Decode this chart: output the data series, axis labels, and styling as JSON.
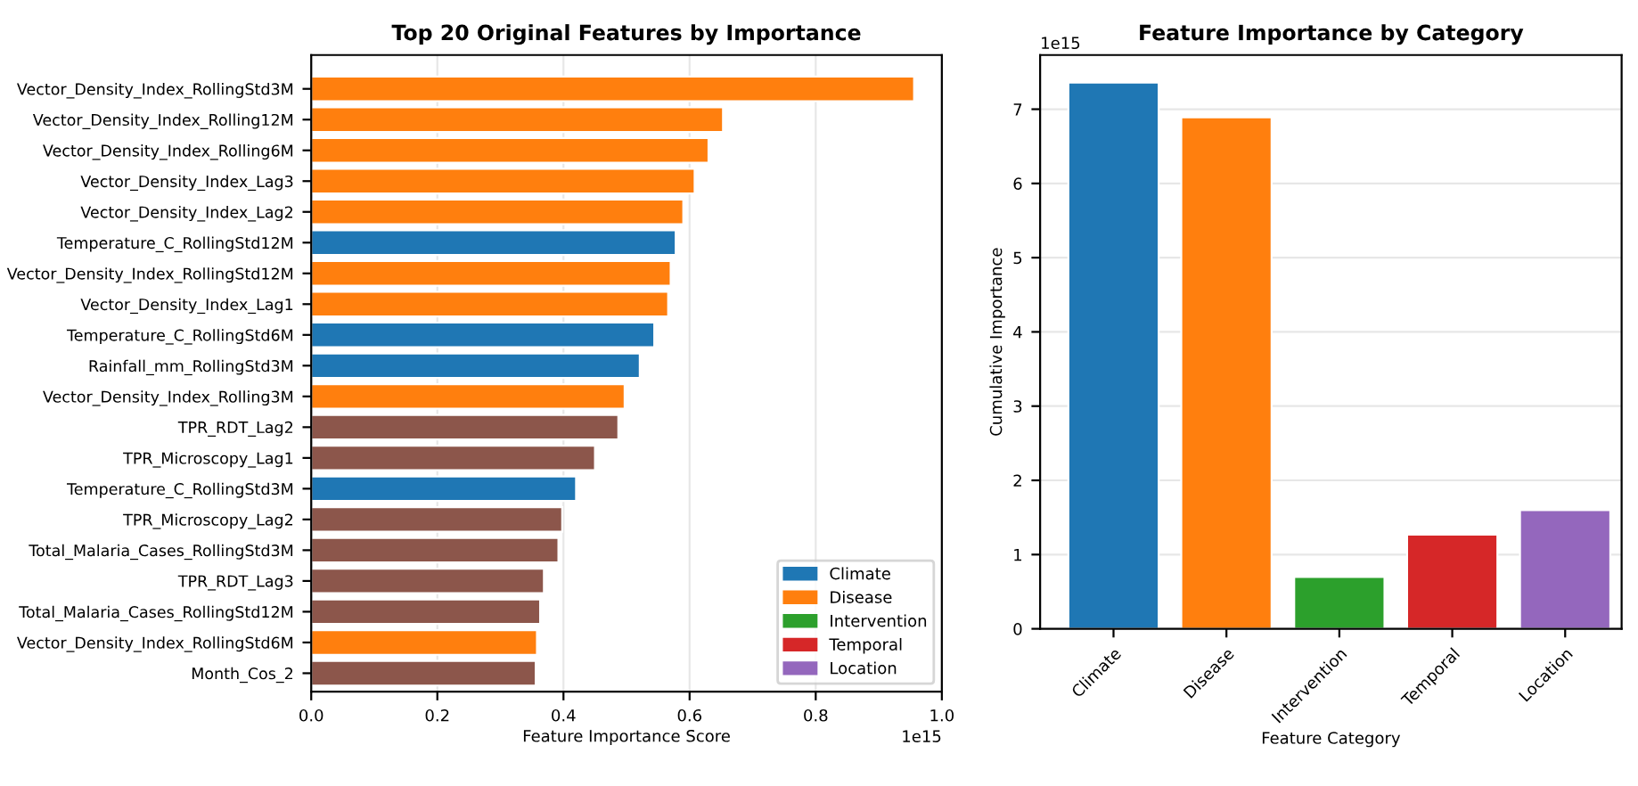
{
  "chart_data": [
    {
      "type": "bar",
      "orientation": "horizontal",
      "title": "Top 20 Original Features by Importance",
      "xlabel": "Feature Importance Score",
      "categories": [
        "Vector_Density_Index_RollingStd3M",
        "Vector_Density_Index_Rolling12M",
        "Vector_Density_Index_Rolling6M",
        "Vector_Density_Index_Lag3",
        "Vector_Density_Index_Lag2",
        "Temperature_C_RollingStd12M",
        "Vector_Density_Index_RollingStd12M",
        "Vector_Density_Index_Lag1",
        "Temperature_C_RollingStd6M",
        "Rainfall_mm_RollingStd3M",
        "Vector_Density_Index_Rolling3M",
        "TPR_RDT_Lag2",
        "TPR_Microscopy_Lag1",
        "Temperature_C_RollingStd3M",
        "TPR_Microscopy_Lag2",
        "Total_Malaria_Cases_RollingStd3M",
        "TPR_RDT_Lag3",
        "Total_Malaria_Cases_RollingStd12M",
        "Vector_Density_Index_RollingStd6M",
        "Month_Cos_2"
      ],
      "series": [
        {
          "name": "Climate",
          "color": "#1f77b4",
          "values": [
            null,
            null,
            null,
            null,
            null,
            0.578,
            null,
            null,
            0.544,
            0.521,
            null,
            null,
            null,
            0.42,
            null,
            null,
            null,
            null,
            null,
            null
          ]
        },
        {
          "name": "Disease",
          "color": "#ff7f0e",
          "values": [
            0.956,
            0.653,
            0.63,
            0.608,
            0.59,
            null,
            0.57,
            0.566,
            null,
            null,
            0.497,
            null,
            null,
            null,
            null,
            null,
            null,
            null,
            0.358,
            null
          ]
        },
        {
          "name": "Intervention",
          "color": "#2ca02c",
          "values": [
            null,
            null,
            null,
            null,
            null,
            null,
            null,
            null,
            null,
            null,
            null,
            null,
            null,
            null,
            null,
            null,
            null,
            null,
            null,
            null
          ]
        },
        {
          "name": "Temporal",
          "color": "#d62728",
          "values": [
            null,
            null,
            null,
            null,
            null,
            null,
            null,
            null,
            null,
            null,
            null,
            null,
            null,
            null,
            null,
            null,
            null,
            null,
            null,
            null
          ]
        },
        {
          "name": "Location",
          "color": "#9467bd",
          "values": [
            null,
            null,
            null,
            null,
            null,
            null,
            null,
            null,
            null,
            null,
            null,
            null,
            null,
            null,
            null,
            null,
            null,
            null,
            null,
            null
          ]
        },
        {
          "color": "#8c564b",
          "values": [
            null,
            null,
            null,
            null,
            null,
            null,
            null,
            null,
            null,
            null,
            null,
            0.487,
            0.45,
            null,
            0.398,
            0.392,
            0.369,
            0.363,
            null,
            0.356
          ]
        }
      ],
      "xlim": [
        0,
        1.0
      ],
      "xticks": [
        {
          "value": 0,
          "label": "0.0"
        },
        0.2,
        0.4,
        0.6,
        0.8,
        {
          "value": 1,
          "label": "1.0"
        }
      ],
      "annotations": [
        "1e15"
      ],
      "grid": "x",
      "legend": "bottom right"
    },
    {
      "type": "bar",
      "title": "Feature Importance by Category",
      "xlabel": "Feature Category",
      "ylabel": "Cumulative Importance",
      "categories": [
        "Climate",
        "Disease",
        "Intervention",
        "Temporal",
        "Location"
      ],
      "values": [
        7.36,
        6.89,
        0.7,
        1.27,
        1.6
      ],
      "colors": [
        "#1f77b4",
        "#ff7f0e",
        "#2ca02c",
        "#d62728",
        "#9467bd"
      ],
      "ylim": [
        0,
        7.73
      ],
      "yticks": [
        0,
        1,
        2,
        3,
        4,
        5,
        6,
        7
      ],
      "annotations": [
        "1e15"
      ],
      "grid": "y"
    }
  ]
}
